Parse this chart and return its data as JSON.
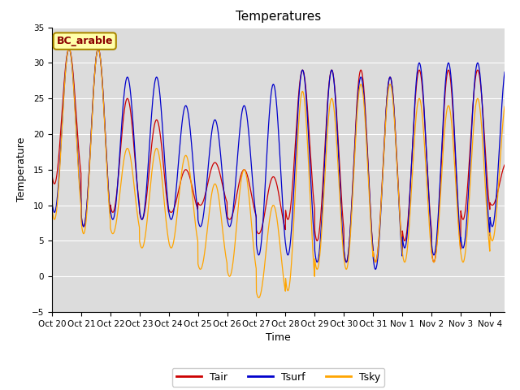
{
  "title": "Temperatures",
  "xlabel": "Time",
  "ylabel": "Temperature",
  "ylim": [
    -5,
    35
  ],
  "yticks": [
    -5,
    0,
    5,
    10,
    15,
    20,
    25,
    30,
    35
  ],
  "xtick_labels": [
    "Oct 20",
    "Oct 21",
    "Oct 22",
    "Oct 23",
    "Oct 24",
    "Oct 25",
    "Oct 26",
    "Oct 27",
    "Oct 28",
    "Oct 29",
    "Oct 30",
    "Oct 31",
    "Nov 1",
    "Nov 2",
    "Nov 3",
    "Nov 4"
  ],
  "legend_label": "BC_arable",
  "line_labels": [
    "Tair",
    "Tsurf",
    "Tsky"
  ],
  "line_colors": [
    "#cc0000",
    "#0000cc",
    "#ffa500"
  ],
  "plot_bg_color": "#dcdcdc",
  "fig_bg_color": "#ffffff",
  "title_fontsize": 11,
  "axis_fontsize": 9,
  "tick_fontsize": 7.5,
  "legend_fontsize": 9,
  "day_max_tair": [
    32,
    32,
    25,
    22,
    15,
    16,
    15,
    14,
    29,
    29,
    29,
    28,
    29,
    29,
    29,
    16
  ],
  "day_min_tair": [
    13,
    7,
    9,
    8,
    9,
    10,
    8,
    6,
    8,
    5,
    2,
    2,
    5,
    2,
    8,
    10
  ],
  "day_max_tsurf": [
    32,
    32,
    28,
    28,
    24,
    22,
    24,
    27,
    29,
    29,
    28,
    28,
    30,
    30,
    30,
    30
  ],
  "day_min_tsurf": [
    9,
    7,
    8,
    8,
    8,
    7,
    7,
    3,
    3,
    2,
    2,
    1,
    4,
    3,
    4,
    7
  ],
  "day_max_tsky": [
    32,
    32,
    18,
    18,
    17,
    13,
    15,
    10,
    26,
    25,
    27,
    27,
    25,
    24,
    25,
    25
  ],
  "day_min_tsky": [
    8,
    6,
    6,
    4,
    4,
    1,
    0,
    -3,
    -2,
    1,
    1,
    2,
    2,
    2,
    2,
    5
  ]
}
